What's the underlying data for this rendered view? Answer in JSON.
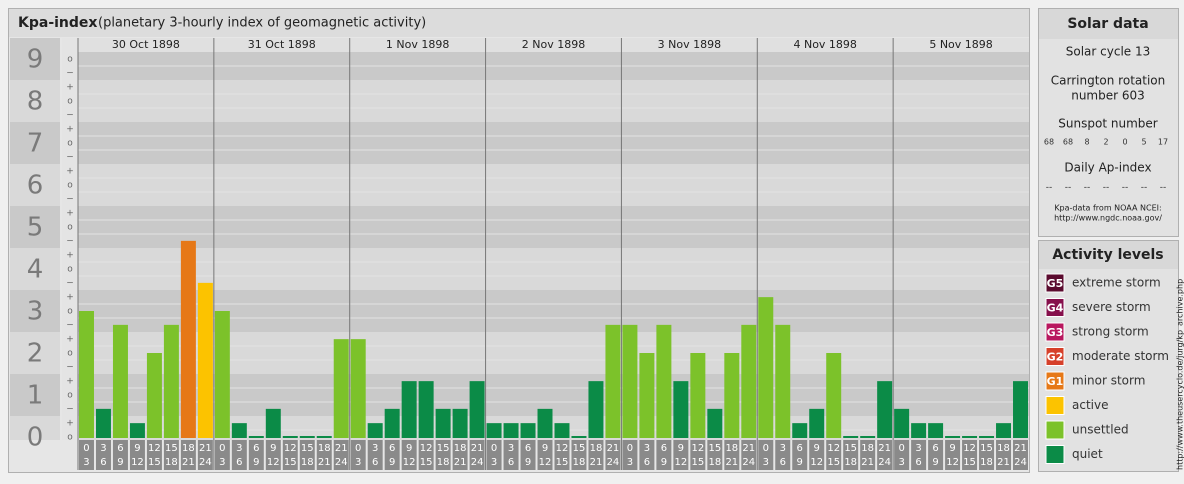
{
  "header": {
    "title": "Kpa-index",
    "subtitle": "(planetary 3-hourly index of geomagnetic activity)"
  },
  "chart_data": {
    "type": "bar",
    "days": [
      "30 Oct 1898",
      "31 Oct 1898",
      "1 Nov 1898",
      "2 Nov 1898",
      "3 Nov 1898",
      "4 Nov 1898",
      "5 Nov 1898"
    ],
    "hours": [
      "0",
      "3",
      "6",
      "9",
      "12",
      "15",
      "18",
      "21",
      "24"
    ],
    "values": [
      3,
      0.67,
      2.67,
      0.33,
      2,
      2.67,
      4.67,
      3.67,
      3,
      0.33,
      0,
      0.67,
      0,
      0,
      0,
      2.33,
      2.33,
      0.33,
      0.67,
      1.33,
      1.33,
      0.67,
      0.67,
      1.33,
      0.33,
      0.33,
      0.33,
      0.67,
      0.33,
      0,
      1.33,
      2.67,
      2.67,
      2,
      2.67,
      1.33,
      2,
      0.67,
      2,
      2.67,
      3.33,
      2.67,
      0.33,
      0.67,
      2,
      0,
      0,
      1.33,
      0.67,
      0.33,
      0.33,
      0,
      0,
      0,
      0.33,
      1.33
    ],
    "colors": [
      "#7cc22a",
      "#0b8b47",
      "#7cc22a",
      "#0b8b47",
      "#7cc22a",
      "#7cc22a",
      "#e67817",
      "#fcc300",
      "#7cc22a",
      "#0b8b47",
      "#0b8b47",
      "#0b8b47",
      "#0b8b47",
      "#0b8b47",
      "#0b8b47",
      "#7cc22a",
      "#7cc22a",
      "#0b8b47",
      "#0b8b47",
      "#0b8b47",
      "#0b8b47",
      "#0b8b47",
      "#0b8b47",
      "#0b8b47",
      "#0b8b47",
      "#0b8b47",
      "#0b8b47",
      "#0b8b47",
      "#0b8b47",
      "#0b8b47",
      "#0b8b47",
      "#7cc22a",
      "#7cc22a",
      "#7cc22a",
      "#7cc22a",
      "#0b8b47",
      "#7cc22a",
      "#0b8b47",
      "#7cc22a",
      "#7cc22a",
      "#7cc22a",
      "#7cc22a",
      "#0b8b47",
      "#0b8b47",
      "#7cc22a",
      "#0b8b47",
      "#0b8b47",
      "#0b8b47",
      "#0b8b47",
      "#0b8b47",
      "#0b8b47",
      "#0b8b47",
      "#0b8b47",
      "#0b8b47",
      "#0b8b47",
      "#0b8b47"
    ],
    "ylim": [
      0,
      9.5
    ],
    "yticks": [
      0,
      1,
      2,
      3,
      4,
      5,
      6,
      7,
      8,
      9
    ],
    "subtick_labels": [
      "−",
      "o",
      "+"
    ]
  },
  "solar_data": {
    "title": "Solar data",
    "cycle": "Solar cycle 13",
    "carrington": [
      "Carrington rotation",
      "number 603"
    ],
    "sunspot_title": "Sunspot number",
    "sunspot_numbers": [
      68,
      68,
      8,
      2,
      0,
      5,
      17
    ],
    "ap_title": "Daily Ap-index",
    "ap_values": [
      "--",
      "--",
      "--",
      "--",
      "--",
      "--",
      "--"
    ],
    "source": [
      "Kpa-data from NOAA NCEI:",
      "http://www.ngdc.noaa.gov/"
    ]
  },
  "activity_levels": {
    "title": "Activity levels",
    "items": [
      {
        "code": "G5",
        "label": "extreme storm",
        "color": "#5a0a2e"
      },
      {
        "code": "G4",
        "label": "severe storm",
        "color": "#86104c"
      },
      {
        "code": "G3",
        "label": "strong storm",
        "color": "#b8175e"
      },
      {
        "code": "G2",
        "label": "moderate storm",
        "color": "#d6402a"
      },
      {
        "code": "G1",
        "label": "minor storm",
        "color": "#e67817"
      },
      {
        "label": "active",
        "color": "#fcc300"
      },
      {
        "label": "unsettled",
        "color": "#7cc22a"
      },
      {
        "label": "quiet",
        "color": "#0b8b47"
      }
    ]
  },
  "side_url": "http://www.theusercyclo.de/jurg/kp_archive.php"
}
